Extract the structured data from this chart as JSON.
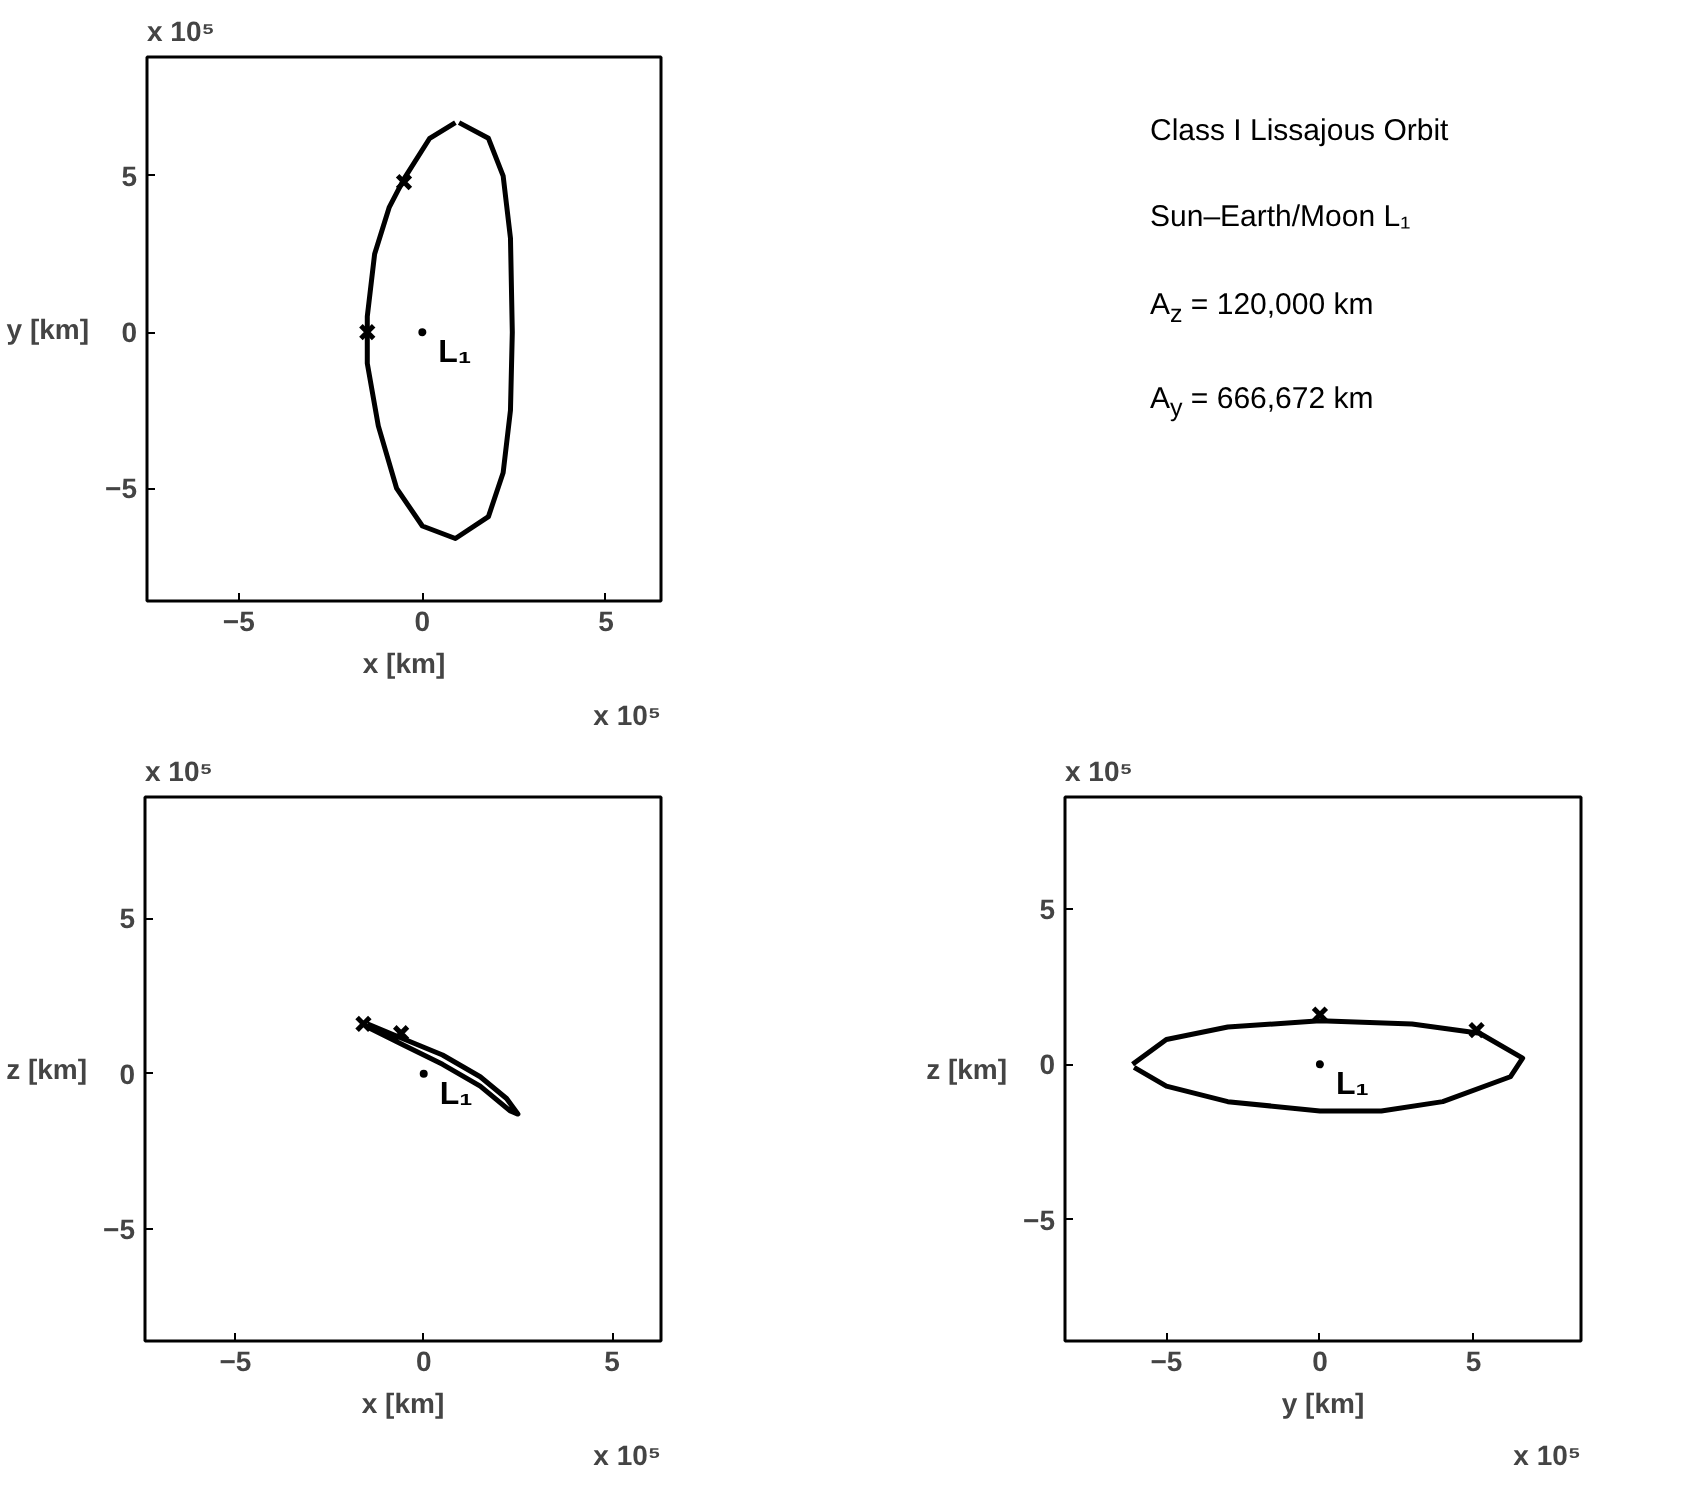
{
  "chart_data": [
    {
      "type": "line",
      "xlabel": "x [km]",
      "ylabel": "y [km]",
      "xlim": [
        -7.5,
        6.5
      ],
      "ylim": [
        -8.6,
        8.8
      ],
      "xticks": [
        -5,
        0,
        5
      ],
      "yticks": [
        -5,
        0,
        5
      ],
      "grid": false,
      "series": [
        {
          "type": "line",
          "color": "#000000",
          "x": [
            1.0,
            1.8,
            2.2,
            2.4,
            2.45,
            2.4,
            2.2,
            1.8,
            0.9,
            0.0,
            -0.7,
            -1.2,
            -1.5,
            -1.5,
            -1.3,
            -0.9,
            -0.5,
            0.2,
            0.9
          ],
          "values": [
            6.7,
            6.2,
            5.0,
            3.0,
            0,
            -2.5,
            -4.5,
            -5.9,
            -6.6,
            -6.2,
            -5.0,
            -3.0,
            -1.0,
            0.5,
            2.5,
            4.0,
            4.9,
            6.2,
            6.7
          ]
        },
        {
          "type": "scatter",
          "marker": "cross",
          "color": "#000000",
          "x": [
            -0.5,
            -1.5
          ],
          "values": [
            4.8,
            0
          ]
        },
        {
          "type": "scatter",
          "marker": "circle",
          "name": "L₁",
          "color": "#000000",
          "x": [
            0
          ],
          "values": [
            0
          ]
        }
      ],
      "annotations": [
        "x 10⁵",
        "x 10⁵"
      ]
    },
    {
      "type": "other",
      "annotations": [
        "Class I Lissajous Orbit",
        "Sun–Earth/Moon L₁",
        "A$_{z}$ = 120,000 km",
        "A$_{y}$ = 666,672 km"
      ]
    },
    {
      "type": "line",
      "xlabel": "x [km]",
      "ylabel": "z [km]",
      "xlim": [
        -7.4,
        6.3
      ],
      "ylim": [
        -8.6,
        8.9
      ],
      "xticks": [
        -5,
        0,
        5
      ],
      "yticks": [
        -5,
        0,
        5
      ],
      "grid": false,
      "series": [
        {
          "type": "line",
          "color": "#000000",
          "x": [
            -1.5,
            -0.5,
            0.5,
            1.5,
            2.2,
            2.5,
            2.3,
            1.5,
            0.5,
            -0.5,
            -1.5
          ],
          "values": [
            1.6,
            1.1,
            0.6,
            -0.1,
            -0.8,
            -1.3,
            -1.2,
            -0.4,
            0.3,
            0.9,
            1.5
          ]
        },
        {
          "type": "scatter",
          "marker": "cross",
          "color": "#000000",
          "x": [
            -1.6,
            -0.6
          ],
          "values": [
            1.6,
            1.3
          ]
        },
        {
          "type": "scatter",
          "marker": "circle",
          "name": "L₁",
          "color": "#000000",
          "x": [
            0
          ],
          "values": [
            0
          ]
        }
      ],
      "annotations": [
        "x 10⁵",
        "x 10⁵"
      ]
    },
    {
      "type": "line",
      "xlabel": "y [km]",
      "ylabel": "z [km]",
      "xlim": [
        -8.3,
        8.5
      ],
      "ylim": [
        -8.9,
        8.6
      ],
      "xticks": [
        -5,
        0,
        5
      ],
      "yticks": [
        -5,
        0,
        5
      ],
      "grid": false,
      "series": [
        {
          "type": "line",
          "color": "#000000",
          "x": [
            -6.1,
            -5,
            -3,
            0,
            3,
            5.2,
            6.6,
            6.2,
            4,
            2,
            0,
            -3,
            -5,
            -6.05
          ],
          "values": [
            0,
            0.8,
            1.2,
            1.4,
            1.3,
            1.0,
            0.2,
            -0.4,
            -1.2,
            -1.5,
            -1.5,
            -1.2,
            -0.7,
            -0.1
          ]
        },
        {
          "type": "scatter",
          "marker": "cross",
          "color": "#000000",
          "x": [
            0,
            5.1
          ],
          "values": [
            1.6,
            1.1
          ]
        },
        {
          "type": "scatter",
          "marker": "circle",
          "name": "L₁",
          "color": "#000000",
          "x": [
            0
          ],
          "values": [
            0
          ]
        }
      ],
      "annotations": [
        "x 10⁵",
        "x 10⁵"
      ]
    }
  ]
}
